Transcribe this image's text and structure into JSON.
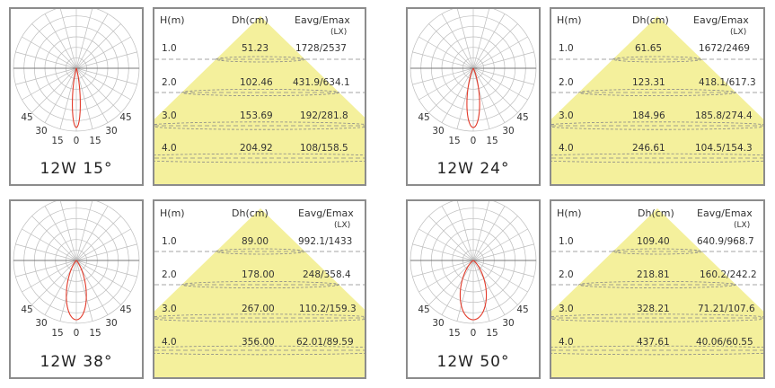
{
  "colors": {
    "beam": "#f4f09c",
    "curve": "#e23a2a",
    "grid": "#bdbdbd",
    "border": "#8c8c8c",
    "dash": "#888888"
  },
  "angle_labels": [
    "45",
    "30",
    "15",
    "0",
    "15",
    "30",
    "45"
  ],
  "table_headers": {
    "height": "H(m)",
    "diameter": "Dh(cm)",
    "illuminance": "Eavg/Emax",
    "unit": "(LX)"
  },
  "chart_data": [
    {
      "type": "table",
      "title": "12W 15°",
      "beam_angle_deg": 15,
      "columns": [
        "H(m)",
        "Dh(cm)",
        "Eavg/Emax"
      ],
      "rows": [
        {
          "h": "1.0",
          "dh": "51.23",
          "e": "1728/2537"
        },
        {
          "h": "2.0",
          "dh": "102.46",
          "e": "431.9/634.1"
        },
        {
          "h": "3.0",
          "dh": "153.69",
          "e": "192/281.8"
        },
        {
          "h": "4.0",
          "dh": "204.92",
          "e": "108/158.5"
        }
      ]
    },
    {
      "type": "table",
      "title": "12W 24°",
      "beam_angle_deg": 24,
      "columns": [
        "H(m)",
        "Dh(cm)",
        "Eavg/Emax"
      ],
      "rows": [
        {
          "h": "1.0",
          "dh": "61.65",
          "e": "1672/2469"
        },
        {
          "h": "2.0",
          "dh": "123.31",
          "e": "418.1/617.3"
        },
        {
          "h": "3.0",
          "dh": "184.96",
          "e": "185.8/274.4"
        },
        {
          "h": "4.0",
          "dh": "246.61",
          "e": "104.5/154.3"
        }
      ]
    },
    {
      "type": "table",
      "title": "12W 38°",
      "beam_angle_deg": 38,
      "columns": [
        "H(m)",
        "Dh(cm)",
        "Eavg/Emax"
      ],
      "rows": [
        {
          "h": "1.0",
          "dh": "89.00",
          "e": "992.1/1433"
        },
        {
          "h": "2.0",
          "dh": "178.00",
          "e": "248/358.4"
        },
        {
          "h": "3.0",
          "dh": "267.00",
          "e": "110.2/159.3"
        },
        {
          "h": "4.0",
          "dh": "356.00",
          "e": "62.01/89.59"
        }
      ]
    },
    {
      "type": "table",
      "title": "12W 50°",
      "beam_angle_deg": 50,
      "columns": [
        "H(m)",
        "Dh(cm)",
        "Eavg/Emax"
      ],
      "rows": [
        {
          "h": "1.0",
          "dh": "109.40",
          "e": "640.9/968.7"
        },
        {
          "h": "2.0",
          "dh": "218.81",
          "e": "160.2/242.2"
        },
        {
          "h": "3.0",
          "dh": "328.21",
          "e": "71.21/107.6"
        },
        {
          "h": "4.0",
          "dh": "437.61",
          "e": "40.06/60.55"
        }
      ]
    }
  ]
}
